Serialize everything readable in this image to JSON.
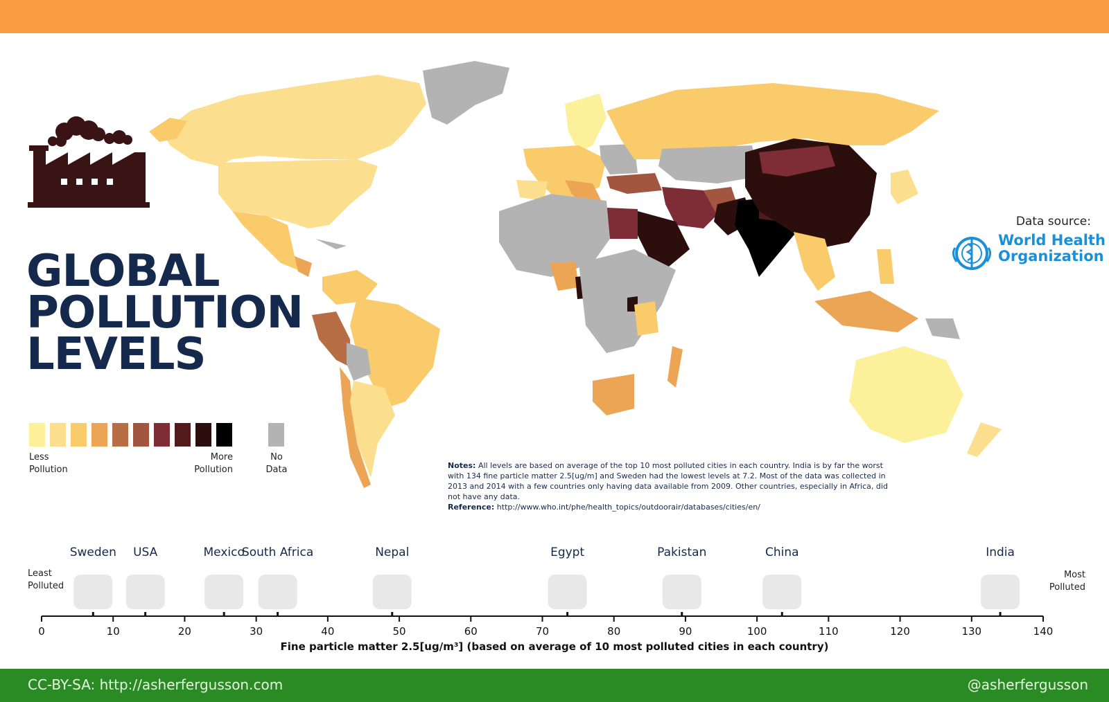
{
  "header": {
    "bar_color": "#f99c42"
  },
  "title": {
    "line1": "GLOBAL",
    "line2": "POLLUTION",
    "line3": "LEVELS"
  },
  "legend": {
    "colors": [
      "#fdf09a",
      "#fcdf8e",
      "#f9cb6a",
      "#eba554",
      "#b76e45",
      "#a2553f",
      "#7e2c35",
      "#521a1c",
      "#2c0e0d",
      "#000000"
    ],
    "no_data_color": "#b3b3b3",
    "less_label_1": "Less",
    "less_label_2": "Pollution",
    "more_label_1": "More",
    "more_label_2": "Pollution",
    "nodata_label_1": "No",
    "nodata_label_2": "Data"
  },
  "source": {
    "label": "Data source:",
    "org_line1": "World Health",
    "org_line2": "Organization",
    "org_color": "#1b8fd8"
  },
  "notes": {
    "label": "Notes:",
    "text": "All levels are based on average of the top 10 most polluted cities in each country. India is by far the worst with 134 fine particle matter 2.5[ug/m] and Sweden had the lowest levels at 7.2. Most of the data was collected in 2013 and 2014 with a few countries only having data available from 2009. Other countries, especially in Africa, did not have any data.",
    "ref_label": "Reference:",
    "ref_url": "http://www.who.int/phe/health_topics/outdoorair/databases/cities/en/"
  },
  "axis": {
    "least_1": "Least",
    "least_2": "Polluted",
    "most_1": "Most",
    "most_2": "Polluted",
    "xlabel": "Fine particle matter 2.5[ug/m³] (based on average of 10 most polluted cities in each country)",
    "ticks": [
      "0",
      "10",
      "20",
      "30",
      "40",
      "50",
      "60",
      "70",
      "80",
      "90",
      "100",
      "110",
      "120",
      "130",
      "140"
    ]
  },
  "chart_data": {
    "type": "scatter",
    "xlabel": "Fine particle matter 2.5[ug/m³] (based on average of 10 most polluted cities in each country)",
    "xlim": [
      0,
      140
    ],
    "points": [
      {
        "label": "Sweden",
        "x": 7.2
      },
      {
        "label": "USA",
        "x": 14.5
      },
      {
        "label": "Mexico",
        "x": 25.5
      },
      {
        "label": "South Africa",
        "x": 33
      },
      {
        "label": "Nepal",
        "x": 49
      },
      {
        "label": "Egypt",
        "x": 73.5
      },
      {
        "label": "Pakistan",
        "x": 89.5
      },
      {
        "label": "China",
        "x": 103.5
      },
      {
        "label": "India",
        "x": 134
      }
    ]
  },
  "footer": {
    "license": "CC-BY-SA: http://asherfergusson.com",
    "handle": "@asherfergusson"
  }
}
